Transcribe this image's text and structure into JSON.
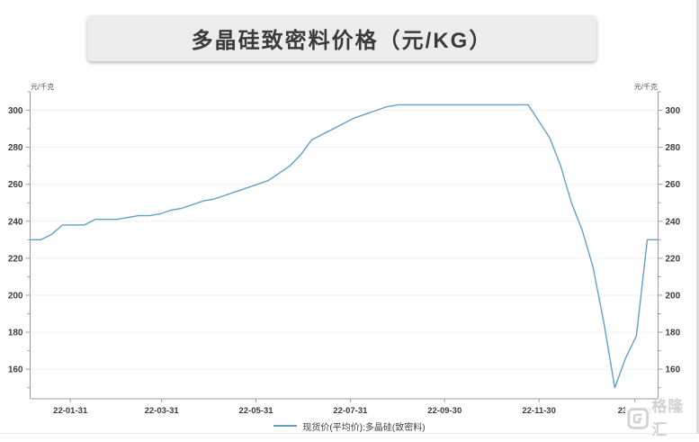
{
  "header": {
    "title": "多晶硅致密料价格（元/KG）"
  },
  "axes": {
    "y_unit_left": "元/千克",
    "y_unit_right": "元/千克"
  },
  "legend": {
    "label": "现货价(平均价):多晶硅(致密料)"
  },
  "watermark": {
    "text": "格隆汇",
    "icon": "gelonghui-logo-icon"
  },
  "colors": {
    "line": "#63A0C8",
    "axis": "#9b9b9b",
    "grid": "#f1f1f1",
    "tick_text": "#3d3d3d",
    "title_bg": "#ececec",
    "title_text": "#3b3b3b",
    "watermark": "#d2d2d2"
  },
  "chart_data": {
    "type": "line",
    "title": "多晶硅致密料价格（元/KG）",
    "xlabel": "",
    "ylabel": "元/千克",
    "ylim": [
      144,
      310
    ],
    "yticks_major": [
      160,
      180,
      200,
      220,
      240,
      260,
      280,
      300
    ],
    "ytick_minor_step": 10,
    "xtick_labels": [
      "22-01-31",
      "22-03-31",
      "22-05-31",
      "22-07-31",
      "22-09-30",
      "22-11-30",
      "23-01-31"
    ],
    "grid": "horizontal",
    "legend_position": "bottom-center",
    "series": [
      {
        "name": "现货价(平均价):多晶硅(致密料)",
        "color": "#63A0C8",
        "dates": [
          "22-01-05",
          "22-01-12",
          "22-01-19",
          "22-01-26",
          "22-02-02",
          "22-02-09",
          "22-02-16",
          "22-02-23",
          "22-03-02",
          "22-03-09",
          "22-03-16",
          "22-03-23",
          "22-03-30",
          "22-04-06",
          "22-04-13",
          "22-04-20",
          "22-04-27",
          "22-05-04",
          "22-05-11",
          "22-05-18",
          "22-05-25",
          "22-06-01",
          "22-06-08",
          "22-06-15",
          "22-06-22",
          "22-06-29",
          "22-07-06",
          "22-07-13",
          "22-07-20",
          "22-07-27",
          "22-08-03",
          "22-08-10",
          "22-08-17",
          "22-08-24",
          "22-08-31",
          "22-09-07",
          "22-09-14",
          "22-09-21",
          "22-09-28",
          "22-10-12",
          "22-10-19",
          "22-10-26",
          "22-11-02",
          "22-11-09",
          "22-11-16",
          "22-11-23",
          "22-11-30",
          "22-12-07",
          "22-12-14",
          "22-12-21",
          "22-12-28",
          "23-01-04",
          "23-01-11",
          "23-01-18",
          "23-01-25",
          "23-02-01",
          "23-02-08",
          "23-02-15"
        ],
        "values": [
          230,
          230,
          233,
          238,
          238,
          238,
          241,
          241,
          241,
          242,
          243,
          243,
          244,
          246,
          247,
          249,
          251,
          252,
          254,
          256,
          258,
          260,
          262,
          266,
          270,
          276,
          284,
          287,
          290,
          293,
          296,
          298,
          300,
          302,
          303,
          303,
          303,
          303,
          303,
          303,
          303,
          303,
          303,
          303,
          303,
          303,
          294,
          285,
          270,
          250,
          235,
          215,
          185,
          150,
          166,
          178,
          230,
          230
        ]
      }
    ]
  }
}
